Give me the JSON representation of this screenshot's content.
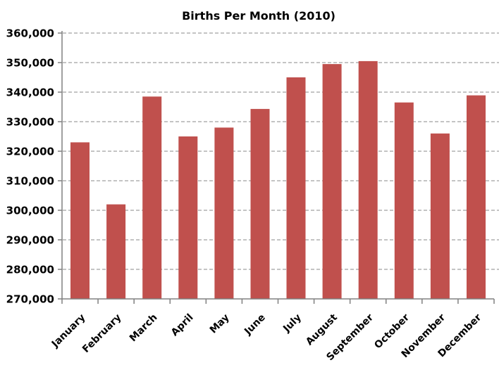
{
  "chart_data": {
    "type": "bar",
    "title": "Births Per Month (2010)",
    "categories": [
      "January",
      "February",
      "March",
      "April",
      "May",
      "June",
      "July",
      "August",
      "September",
      "October",
      "November",
      "December"
    ],
    "values": [
      323000,
      302000,
      338500,
      325000,
      328000,
      334300,
      345000,
      349500,
      350500,
      336500,
      326000,
      338900
    ],
    "xlabel": "",
    "ylabel": "",
    "ylim": [
      270000,
      360000
    ],
    "yticks": [
      270000,
      280000,
      290000,
      300000,
      310000,
      320000,
      330000,
      340000,
      350000,
      360000
    ],
    "ytick_labels": [
      "270,000",
      "280,000",
      "290,000",
      "300,000",
      "310,000",
      "320,000",
      "330,000",
      "340,000",
      "350,000",
      "360,000"
    ],
    "grid": "horizontal-dashed",
    "legend": "none",
    "colors": {
      "bar": "#C0504D",
      "axis": "#808080",
      "gridline": "#888888",
      "text": "#000000",
      "background": "#FFFFFF"
    }
  }
}
